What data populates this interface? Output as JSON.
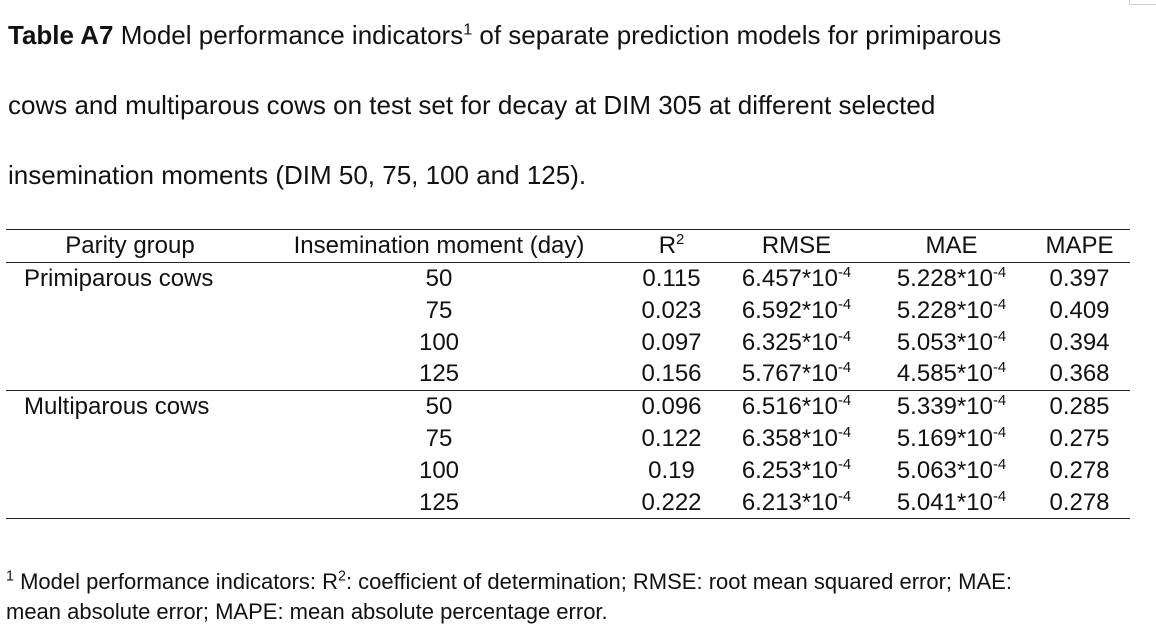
{
  "caption": {
    "label": "Table A7",
    "line1_text": " Model performance indicators",
    "line1_sup": "1",
    "line1_rest": " of separate prediction models for primiparous",
    "line2": "cows and multiparous cows on test set for decay at DIM 305 at different selected",
    "line3": "insemination moments (DIM 50, 75, 100 and 125)."
  },
  "table": {
    "headers": {
      "parity": "Parity group",
      "insemination": "Insemination moment (day)",
      "r2_base": "R",
      "r2_sup": "2",
      "rmse": "RMSE",
      "mae": "MAE",
      "mape": "MAPE"
    },
    "exp_base": "*10",
    "exp_sup": "-4",
    "groups": [
      {
        "name": "Primiparous cows",
        "rows": [
          {
            "ins": "50",
            "r2": "0.115",
            "rmse": "6.457",
            "mae": "5.228",
            "mape": "0.397"
          },
          {
            "ins": "75",
            "r2": "0.023",
            "rmse": "6.592",
            "mae": "5.228",
            "mape": "0.409"
          },
          {
            "ins": "100",
            "r2": "0.097",
            "rmse": "6.325",
            "mae": "5.053",
            "mape": "0.394"
          },
          {
            "ins": "125",
            "r2": "0.156",
            "rmse": "5.767",
            "mae": "4.585",
            "mape": "0.368"
          }
        ]
      },
      {
        "name": "Multiparous cows",
        "rows": [
          {
            "ins": "50",
            "r2": "0.096",
            "rmse": "6.516",
            "mae": "5.339",
            "mape": "0.285"
          },
          {
            "ins": "75",
            "r2": "0.122",
            "rmse": "6.358",
            "mae": "5.169",
            "mape": "0.275"
          },
          {
            "ins": "100",
            "r2": "0.19",
            "rmse": "6.253",
            "mae": "5.063",
            "mape": "0.278"
          },
          {
            "ins": "125",
            "r2": "0.222",
            "rmse": "6.213",
            "mae": "5.041",
            "mape": "0.278"
          }
        ]
      }
    ]
  },
  "footnote": {
    "marker": "1",
    "line1_a": " Model performance indicators: R",
    "line1_sup": "2",
    "line1_b": ": coefficient of determination; RMSE: root mean squared error; MAE:",
    "line2": "mean absolute error; MAPE: mean absolute percentage error."
  }
}
